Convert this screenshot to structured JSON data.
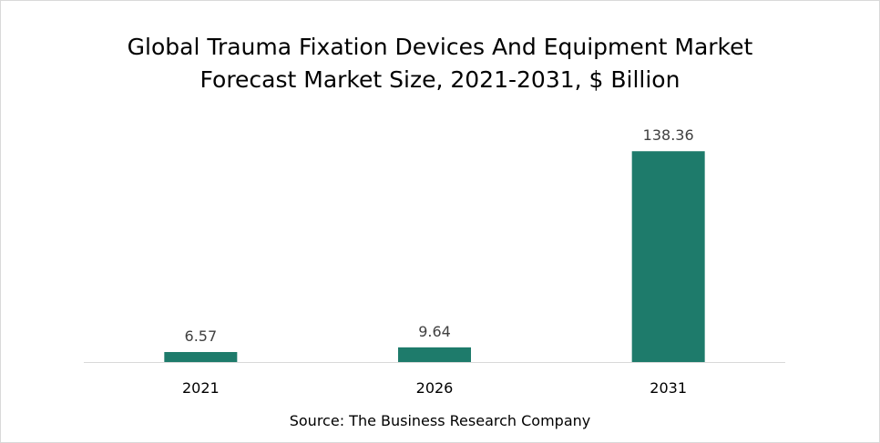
{
  "chart_data": {
    "type": "bar",
    "title_line1": "Global Trauma Fixation Devices And Equipment Market",
    "title_line2": "Forecast Market Size, 2021-2031, $ Billion",
    "categories": [
      "2021",
      "2026",
      "2031"
    ],
    "values": [
      6.57,
      9.64,
      138.36
    ],
    "value_labels": [
      "6.57",
      "9.64",
      "138.36"
    ],
    "xlabel": "",
    "ylabel": "",
    "ylim": [
      0,
      160
    ],
    "grid": false,
    "bar_color": "#1e7b6b",
    "axis_color": "#d9d9d9",
    "source": "Source: The Business Research Company"
  }
}
